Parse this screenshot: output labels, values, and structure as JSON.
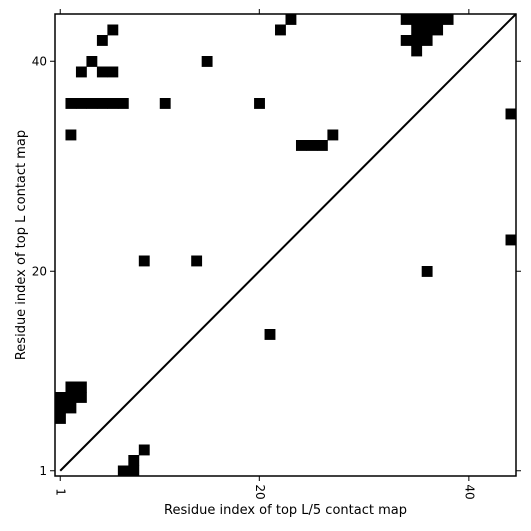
{
  "chart_data": {
    "type": "heatmap",
    "title": "",
    "xlabel": "Residue index of top L/5 contact map",
    "ylabel": "Residue index of top L contact map",
    "xlim": [
      0.5,
      44.5
    ],
    "ylim": [
      0.5,
      44.5
    ],
    "grid": false,
    "diagonal_line": true,
    "cell_color": "#000000",
    "xticks": [
      {
        "value": 1,
        "label": "1"
      },
      {
        "value": 20,
        "label": "20"
      },
      {
        "value": 40,
        "label": "40"
      }
    ],
    "yticks": [
      {
        "value": 1,
        "label": "1"
      },
      {
        "value": 20,
        "label": "20"
      },
      {
        "value": 40,
        "label": "40"
      }
    ],
    "top_L_contacts": [
      [
        23,
        44
      ],
      [
        34,
        44
      ],
      [
        35,
        44
      ],
      [
        36,
        44
      ],
      [
        37,
        44
      ],
      [
        38,
        44
      ],
      [
        6,
        43
      ],
      [
        22,
        43
      ],
      [
        35,
        43
      ],
      [
        36,
        43
      ],
      [
        37,
        43
      ],
      [
        5,
        42
      ],
      [
        34,
        42
      ],
      [
        35,
        42
      ],
      [
        36,
        42
      ],
      [
        35,
        41
      ],
      [
        4,
        40
      ],
      [
        15,
        40
      ],
      [
        3,
        39
      ],
      [
        5,
        39
      ],
      [
        6,
        39
      ],
      [
        2,
        36
      ],
      [
        3,
        36
      ],
      [
        4,
        36
      ],
      [
        5,
        36
      ],
      [
        6,
        36
      ],
      [
        7,
        36
      ],
      [
        11,
        36
      ],
      [
        20,
        36
      ],
      [
        2,
        33
      ],
      [
        27,
        33
      ],
      [
        24,
        32
      ],
      [
        25,
        32
      ],
      [
        26,
        32
      ],
      [
        9,
        21
      ],
      [
        14,
        21
      ]
    ],
    "top_L5_contacts": [
      [
        44,
        35
      ],
      [
        44,
        23
      ],
      [
        36,
        20
      ],
      [
        21,
        14
      ],
      [
        2,
        9
      ],
      [
        3,
        9
      ],
      [
        2,
        8
      ],
      [
        3,
        8
      ],
      [
        1,
        8
      ],
      [
        1,
        7
      ],
      [
        2,
        7
      ],
      [
        1,
        6
      ],
      [
        9,
        3
      ],
      [
        8,
        2
      ],
      [
        7,
        1
      ],
      [
        8,
        1
      ]
    ]
  }
}
